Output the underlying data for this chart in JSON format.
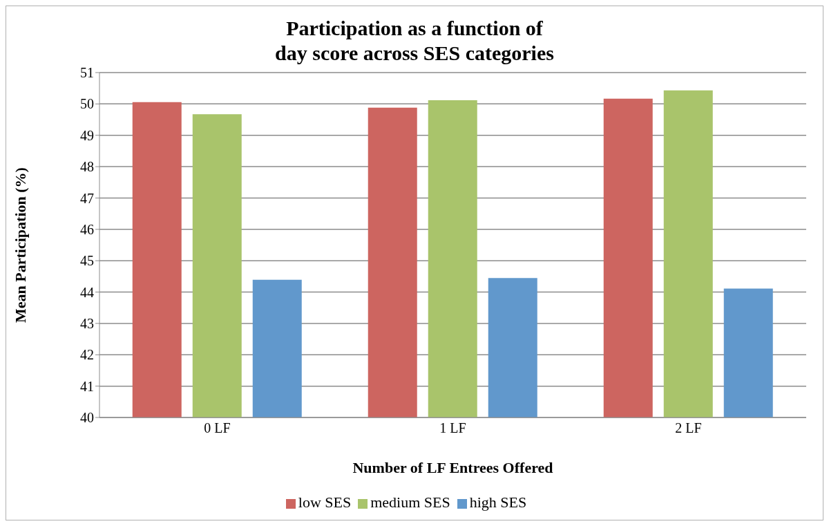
{
  "chart_data": {
    "type": "bar",
    "title": "Participation as a function of\nday score across SES categories",
    "xlabel": "Number of LF Entrees Offered",
    "ylabel": "Mean Participation (%)",
    "categories": [
      "0 LF",
      "1 LF",
      "2 LF"
    ],
    "series": [
      {
        "name": "low SES",
        "color": "#cd6560",
        "values": [
          50.06,
          49.88,
          50.17
        ]
      },
      {
        "name": "medium SES",
        "color": "#a9c46b",
        "values": [
          49.67,
          50.12,
          50.43
        ]
      },
      {
        "name": "high SES",
        "color": "#6198cc",
        "values": [
          44.39,
          44.45,
          44.11
        ]
      }
    ],
    "ylim": [
      40,
      51
    ],
    "yticks": [
      40,
      41,
      42,
      43,
      44,
      45,
      46,
      47,
      48,
      49,
      50,
      51
    ],
    "grid": "y",
    "legend": "bottom"
  }
}
